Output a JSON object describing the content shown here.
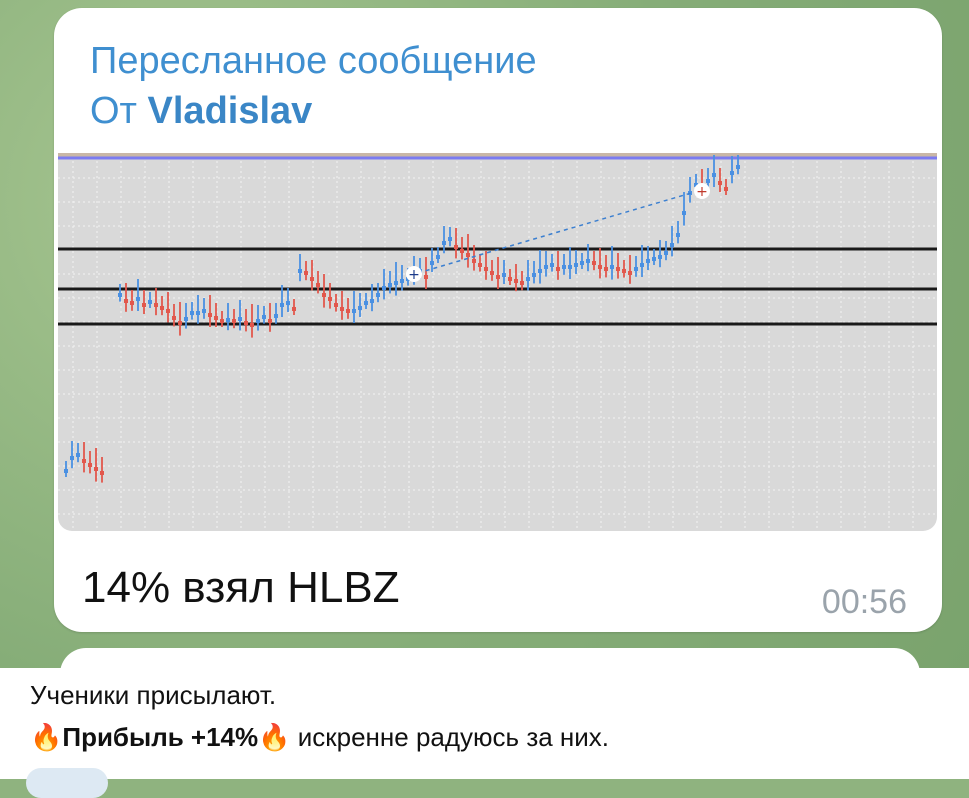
{
  "message": {
    "forward_header": "Пересланное сообщение",
    "forward_from_prefix": "От",
    "forward_from_name": "Vladislav",
    "caption": "14% взял HLBZ",
    "time": "00:56"
  },
  "post": {
    "line1": "Ученики присылают.",
    "fire_emoji": "🔥",
    "profit_label": "Прибыль +14%",
    "line2_rest": " искренне радуюсь за них."
  },
  "chart_data": {
    "type": "candlestick",
    "chart_background": "#d9d9d9",
    "bullish_color": "#4a90e2",
    "bearish_color": "#e2574c",
    "horizontal_levels": 3,
    "top_line_color": "#7b7bf0"
  },
  "colors": {
    "link_blue": "#3f8fd0",
    "wallpaper": "#8fb37f",
    "time_gray": "#9aa3ab"
  }
}
